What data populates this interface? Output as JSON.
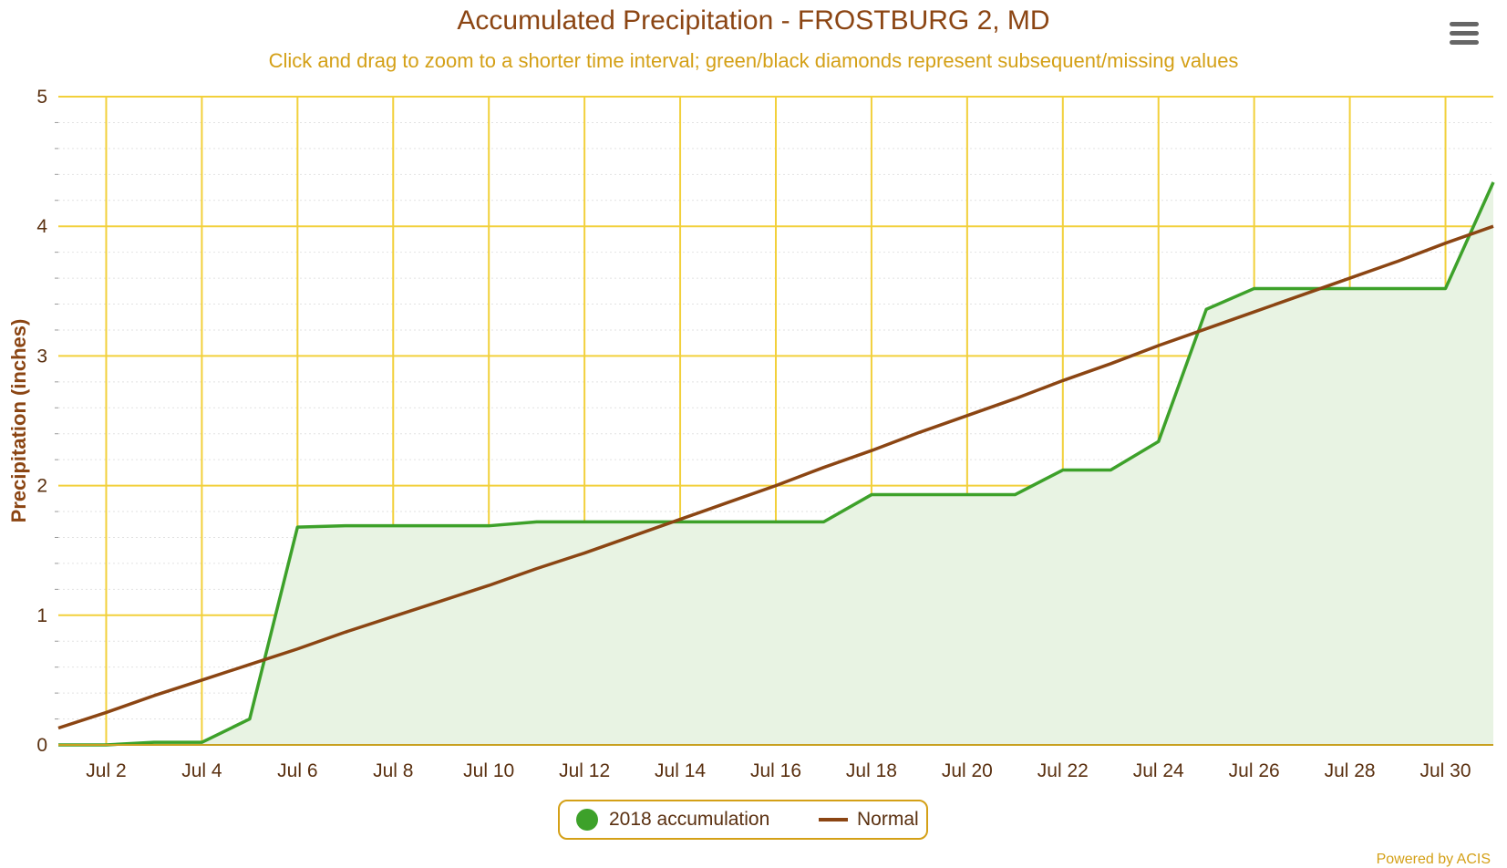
{
  "title": "Accumulated Precipitation - FROSTBURG 2, MD",
  "subtitle": "Click and drag to zoom to a shorter time interval; green/black diamonds represent subsequent/missing values",
  "menu": {
    "icon": "hamburger-menu-icon"
  },
  "credits": "Powered by ACIS",
  "colors": {
    "title": "#8B4513",
    "subtitle": "#D4A017",
    "grid": "#F2D03B",
    "accumulation": "#3DA12A",
    "accumulation_fill": "#E8F3E3",
    "normal": "#8B4513",
    "axis_label": "#5a3010"
  },
  "legend": {
    "items": [
      {
        "label": "2018 accumulation",
        "color": "#3DA12A",
        "symbol": "circle"
      },
      {
        "label": "Normal",
        "color": "#8B4513",
        "symbol": "line"
      }
    ]
  },
  "chart_data": {
    "type": "area",
    "title": "Accumulated Precipitation - FROSTBURG 2, MD",
    "xlabel": "",
    "ylabel": "Precipitation (inches)",
    "ylim": [
      0,
      5
    ],
    "yticks": [
      "0",
      "1",
      "2",
      "3",
      "4",
      "5"
    ],
    "xlim": [
      "Jul 1",
      "Jul 31"
    ],
    "xticks": [
      "Jul 2",
      "Jul 4",
      "Jul 6",
      "Jul 8",
      "Jul 10",
      "Jul 12",
      "Jul 14",
      "Jul 16",
      "Jul 18",
      "Jul 20",
      "Jul 22",
      "Jul 24",
      "Jul 26",
      "Jul 28",
      "Jul 30"
    ],
    "grid": true,
    "legend_position": "bottom-center",
    "x": [
      "Jul 1",
      "Jul 2",
      "Jul 3",
      "Jul 4",
      "Jul 5",
      "Jul 6",
      "Jul 7",
      "Jul 8",
      "Jul 9",
      "Jul 10",
      "Jul 11",
      "Jul 12",
      "Jul 13",
      "Jul 14",
      "Jul 15",
      "Jul 16",
      "Jul 17",
      "Jul 18",
      "Jul 19",
      "Jul 20",
      "Jul 21",
      "Jul 22",
      "Jul 23",
      "Jul 24",
      "Jul 25",
      "Jul 26",
      "Jul 27",
      "Jul 28",
      "Jul 29",
      "Jul 30",
      "Jul 31"
    ],
    "series": [
      {
        "name": "2018 accumulation",
        "style": "area",
        "values": [
          0.0,
          0.0,
          0.02,
          0.02,
          0.2,
          1.68,
          1.69,
          1.69,
          1.69,
          1.69,
          1.72,
          1.72,
          1.72,
          1.72,
          1.72,
          1.72,
          1.72,
          1.93,
          1.93,
          1.93,
          1.93,
          2.12,
          2.12,
          2.34,
          3.36,
          3.52,
          3.52,
          3.52,
          3.52,
          3.52,
          4.34
        ]
      },
      {
        "name": "Normal",
        "style": "line",
        "values": [
          0.13,
          0.25,
          0.38,
          0.5,
          0.62,
          0.74,
          0.87,
          0.99,
          1.11,
          1.23,
          1.36,
          1.48,
          1.61,
          1.74,
          1.87,
          2.0,
          2.14,
          2.27,
          2.41,
          2.54,
          2.67,
          2.81,
          2.94,
          3.08,
          3.21,
          3.34,
          3.47,
          3.6,
          3.73,
          3.87,
          4.0
        ]
      }
    ]
  }
}
